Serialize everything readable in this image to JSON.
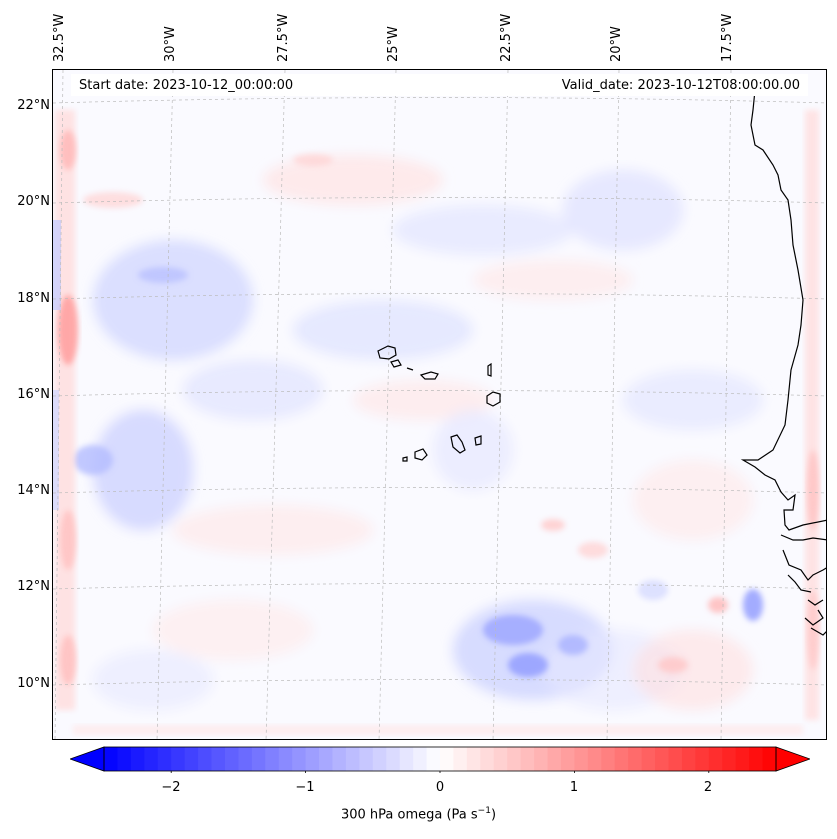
{
  "map": {
    "start_date": "Start date: 2023-10-12_00:00:00",
    "valid_date": "Valid_date: 2023-10-12T08:00:00.00",
    "longitude_labels": [
      "32.5°W",
      "30°W",
      "27.5°W",
      "25°W",
      "22.5°W",
      "20°W",
      "17.5°W"
    ],
    "latitude_labels": [
      "22°N",
      "20°N",
      "18°N",
      "16°N",
      "14°N",
      "12°N",
      "10°N"
    ],
    "variable": "300 hPa omega",
    "units_base": "(Pa s",
    "units_exp": "−1",
    "units_close": ")",
    "lon_range": [
      -33,
      -15.3
    ],
    "lat_range": [
      8.9,
      22.8
    ],
    "gridlines": "dashed grey"
  },
  "colorbar": {
    "ticks": [
      "−2",
      "−1",
      "0",
      "1",
      "2"
    ],
    "tick_values": [
      -2,
      -1,
      0,
      1,
      2
    ],
    "range": [
      -2.5,
      2.5
    ],
    "extend": "both",
    "cmap": "bwr",
    "low_color": "#0000ff",
    "mid_color": "#ffffff",
    "high_color": "#ff0000"
  }
}
